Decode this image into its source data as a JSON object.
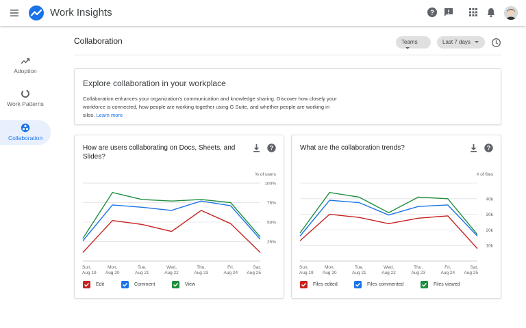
{
  "app": {
    "title": "Work Insights",
    "brand_color": "#1a73e8"
  },
  "topbar_icons": [
    "menu-icon",
    "help-icon",
    "feedback-icon",
    "apps-icon",
    "notifications-icon",
    "avatar"
  ],
  "sidebar": {
    "items": [
      {
        "label": "Adoption",
        "icon": "trending-up-icon",
        "active": false
      },
      {
        "label": "Work Patterns",
        "icon": "donut-icon",
        "active": false
      },
      {
        "label": "Collaboration",
        "icon": "collaboration-icon",
        "active": true
      }
    ]
  },
  "header": {
    "title": "Collaboration",
    "filter_teams": "Teams",
    "filter_range": "Last 7 days"
  },
  "explore": {
    "title": "Explore collaboration in your workplace",
    "body": "Collaboration enhances your organization's communication and knowledge sharing. Discover how closely your workforce is connected, how people are working together using G Suite, and whether people are working in silos.",
    "link": "Learn more"
  },
  "chart_data": [
    {
      "type": "line",
      "title": "How are users collaborating on Docs, Sheets, and Slides?",
      "ylabel": "% of users",
      "ylim": [
        0,
        100
      ],
      "yticks": [
        "100%",
        "75%",
        "50%",
        "25%"
      ],
      "ytick_values": [
        100,
        75,
        50,
        25
      ],
      "grid": true,
      "categories": [
        "Sun, Aug 19",
        "Mon, Aug 20",
        "Tue, Aug 21",
        "Wed, Aug 22",
        "Thu, Aug 23",
        "Fri, Aug 24",
        "Sat, Aug 25"
      ],
      "series": [
        {
          "name": "Edit",
          "color": "#c5221f",
          "values": [
            11,
            52,
            47,
            38,
            65,
            48,
            11
          ]
        },
        {
          "name": "Comment",
          "color": "#1a73e8",
          "values": [
            26,
            72,
            69,
            65,
            77,
            71,
            28
          ]
        },
        {
          "name": "View",
          "color": "#1e8e3e",
          "values": [
            29,
            88,
            79,
            77,
            79,
            75,
            31
          ]
        }
      ]
    },
    {
      "type": "line",
      "title": "What are the collaboration trends?",
      "ylabel": "# of files",
      "ylim": [
        0,
        50
      ],
      "yticks": [
        "40k",
        "30k",
        "20k",
        "10k"
      ],
      "ytick_values": [
        40,
        30,
        20,
        10
      ],
      "grid": true,
      "categories": [
        "Sun, Aug 19",
        "Mon, Aug 20",
        "Tue, Aug 21",
        "Wed, Aug 22",
        "Thu, Aug 23",
        "Fri, Aug 24",
        "Sat, Aug 25"
      ],
      "series": [
        {
          "name": "Files edited",
          "color": "#c5221f",
          "values": [
            13,
            30,
            28,
            24,
            27.5,
            29,
            8
          ]
        },
        {
          "name": "Files commented",
          "color": "#1a73e8",
          "values": [
            16,
            39,
            37.5,
            29.5,
            35,
            36,
            16
          ]
        },
        {
          "name": "Files viewed",
          "color": "#1e8e3e",
          "values": [
            18,
            44,
            41,
            31,
            41,
            40,
            17
          ]
        }
      ]
    }
  ]
}
